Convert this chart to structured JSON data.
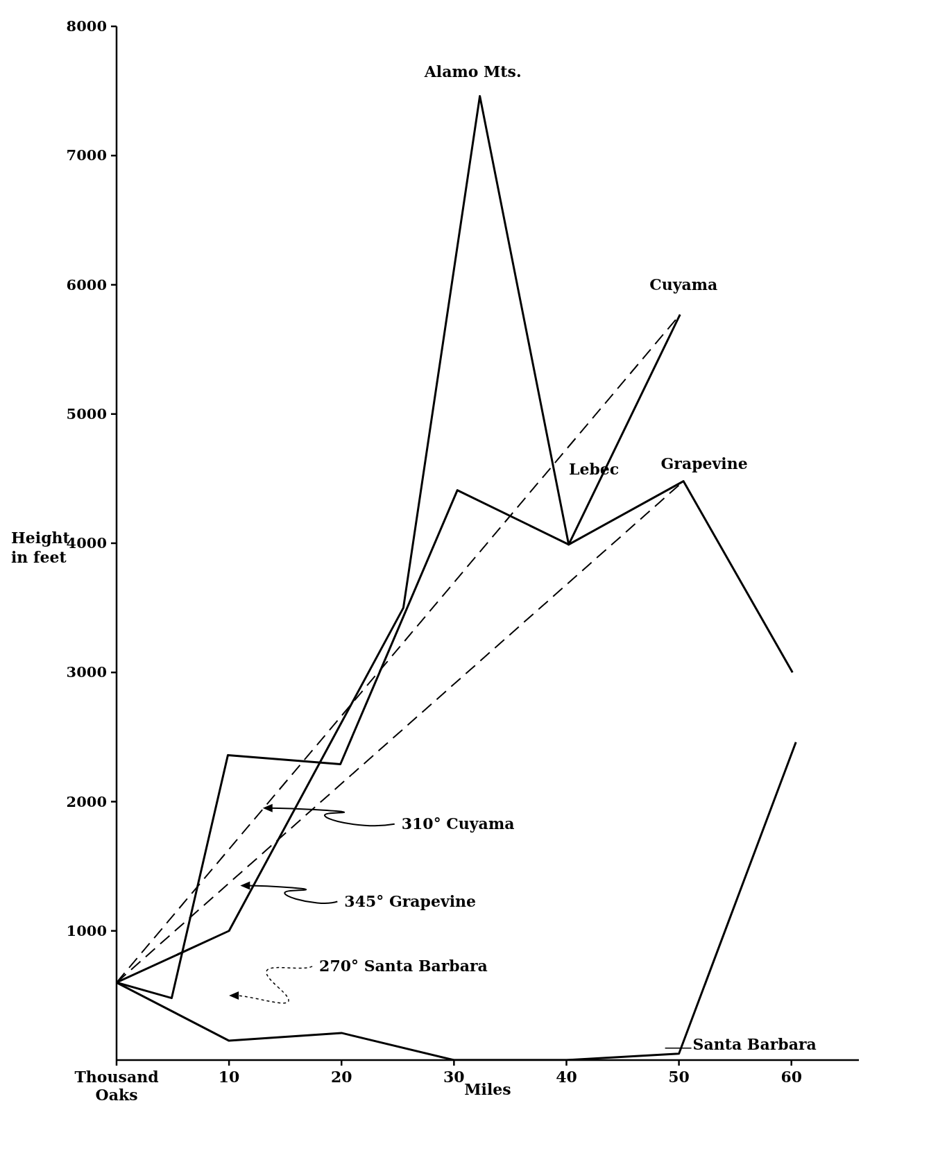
{
  "chart_data": {
    "type": "line",
    "xlabel": "Miles",
    "ylabel": "Height in feet",
    "xlim": [
      0,
      66
    ],
    "xticks": [
      {
        "value": 0,
        "label": "Thousand Oaks"
      },
      10,
      20,
      30,
      40,
      50,
      60
    ],
    "ylim": [
      0,
      8000
    ],
    "yticks": [
      1000,
      2000,
      3000,
      4000,
      5000,
      6000,
      7000,
      8000
    ],
    "marker": "none",
    "series": [
      {
        "color": "#000000",
        "line_style": "solid",
        "x": [
          0,
          10,
          25.5,
          32.3,
          40.2,
          50.1
        ],
        "values": [
          600,
          1000,
          3500,
          7460,
          3990,
          5770
        ]
      },
      {
        "color": "#000000",
        "line_style": "solid",
        "x": [
          0,
          4.9,
          9.9,
          19.9,
          30.3,
          40.2,
          50.4,
          60.1
        ],
        "values": [
          600,
          480,
          2360,
          2290,
          4410,
          3990,
          4480,
          3000
        ]
      },
      {
        "color": "#000000",
        "line_style": "solid",
        "x": [
          0,
          10,
          20,
          30,
          40,
          50,
          60.4
        ],
        "values": [
          600,
          150,
          210,
          0,
          0,
          50,
          2460
        ]
      },
      {
        "color": "#000000",
        "line_style": "dashed",
        "x": [
          0,
          50.1
        ],
        "values": [
          600,
          5770
        ]
      },
      {
        "color": "#000000",
        "line_style": "dashed",
        "x": [
          0,
          50.4
        ],
        "values": [
          600,
          4480
        ]
      }
    ],
    "annotations": [
      {
        "text": "Alamo Mts.",
        "x": 32.3,
        "y": 7460
      },
      {
        "text": "Cuyama",
        "x": 50.1,
        "y": 5770
      },
      {
        "text": "Lebec",
        "x": 44.6,
        "y": 4200
      },
      {
        "text": "Grapevine",
        "x": 50.4,
        "y": 4480
      },
      {
        "text": "Santa Barbara",
        "x": 50,
        "y": 50
      },
      "310° Cuyama",
      "345° Grapevine",
      "270° Santa Barbara"
    ]
  }
}
